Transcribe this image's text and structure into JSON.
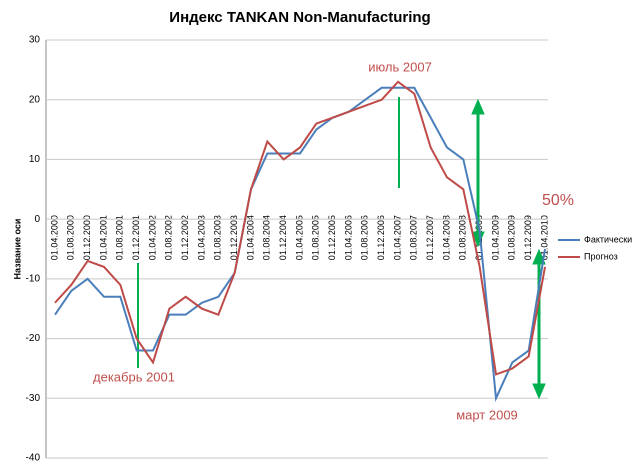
{
  "chart_data": {
    "type": "line",
    "title": "Индекс TANKAN Non-Manufacturing",
    "y_label": "Название оси",
    "categories": [
      "01.04.2000",
      "01.08.2000",
      "01.12.2000",
      "01.04.2001",
      "01.08.2001",
      "01.12.2001",
      "01.04.2002",
      "01.08.2002",
      "01.12.2002",
      "01.04.2003",
      "01.08.2003",
      "01.12.2003",
      "01.04.2004",
      "01.08.2004",
      "01.12.2004",
      "01.04.2005",
      "01.08.2005",
      "01.12.2005",
      "01.04.2006",
      "01.08.2006",
      "01.12.2006",
      "01.04.2007",
      "01.08.2007",
      "01.12.2007",
      "01.04.2008",
      "01.08.2008",
      "01.12.2008",
      "01.04.2009",
      "01.08.2009",
      "01.12.2009",
      "01.04.2010"
    ],
    "series": [
      {
        "name": "Фактически",
        "color": "#4a7ebb",
        "values": [
          -16,
          -12,
          -10,
          -13,
          -13,
          -22,
          -22,
          -16,
          -16,
          -14,
          -13,
          -9,
          5,
          11,
          11,
          11,
          15,
          17,
          18,
          20,
          22,
          22,
          22,
          17,
          12,
          10,
          -2,
          -30,
          -24,
          -22,
          -5
        ]
      },
      {
        "name": "Прогноз",
        "color": "#be4b48",
        "values": [
          -14,
          -11,
          -7,
          -8,
          -11,
          -20,
          -24,
          -15,
          -13,
          -15,
          -16,
          -9,
          5,
          13,
          10,
          12,
          16,
          17,
          18,
          19,
          20,
          23,
          21,
          12,
          7,
          5,
          -8,
          -26,
          -25,
          -23,
          -8
        ]
      }
    ],
    "annotations": [
      "июль 2007",
      "декабрь 2001",
      "март 2009",
      "50%"
    ],
    "ylim": [
      -40,
      30
    ],
    "yticks": [
      -40,
      -30,
      -20,
      -10,
      0,
      10,
      20,
      30
    ],
    "grid": true,
    "legend": "right"
  }
}
